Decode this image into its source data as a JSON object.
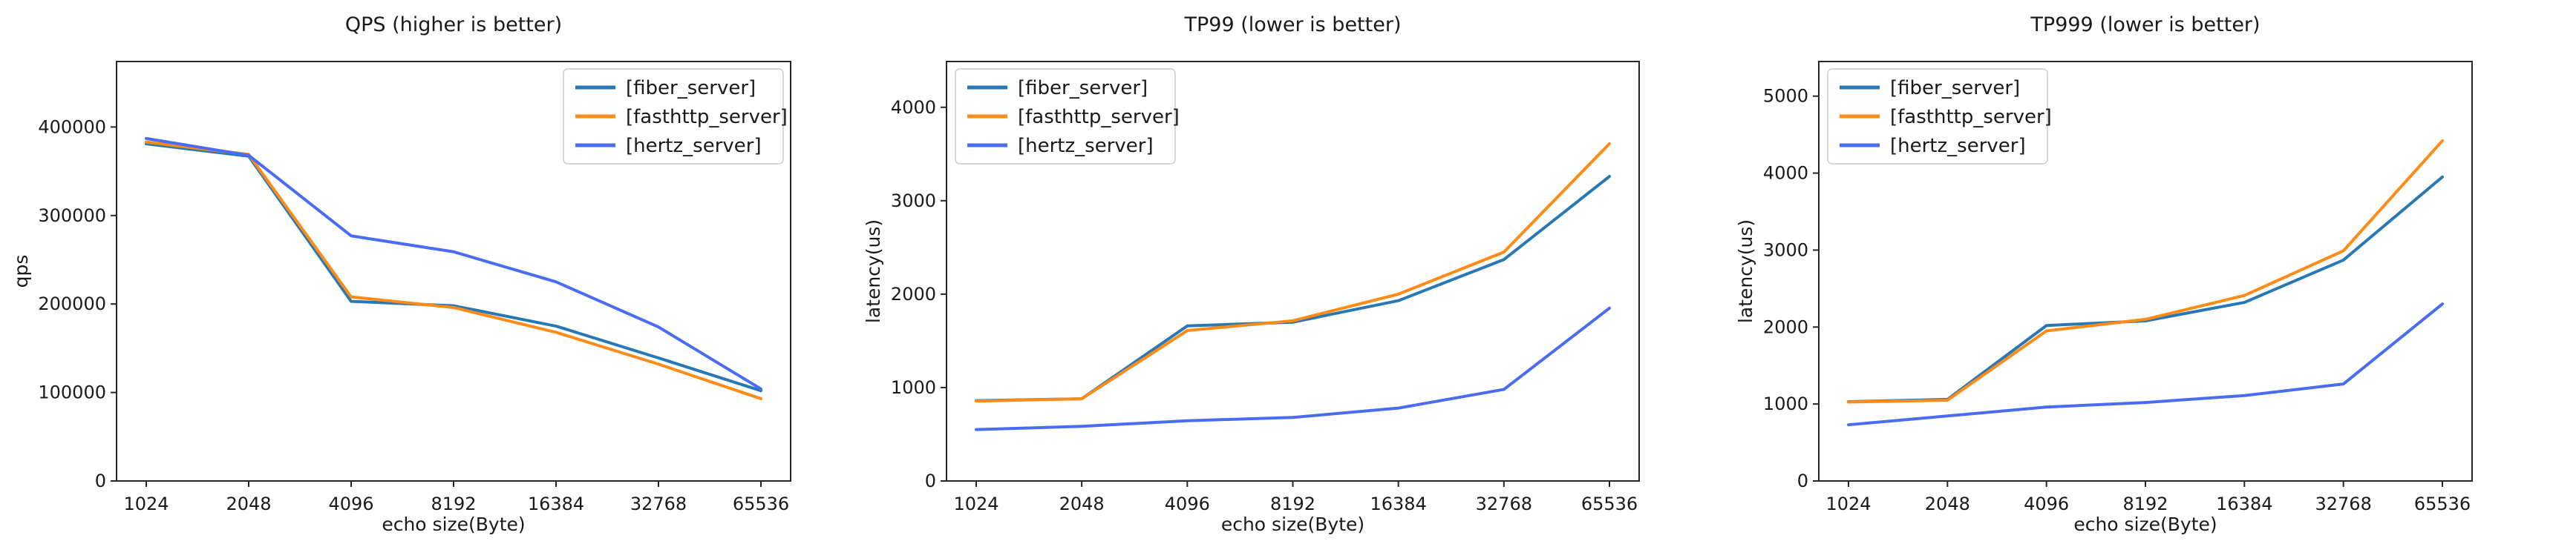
{
  "figure": {
    "background": "#ffffff",
    "text_color": "#1a1a1a",
    "spine_color": "#262626",
    "legend_border_color": "#cccccc",
    "legend_background": "#ffffff"
  },
  "colors": {
    "fiber_server": "#2878b5",
    "fasthttp_server": "#ff8b17",
    "hertz_server": "#4a6cf3"
  },
  "chart_data": [
    {
      "type": "line",
      "title": "QPS (higher is better)",
      "xlabel": "echo size(Byte)",
      "ylabel": "qps",
      "categories": [
        "1024",
        "2048",
        "4096",
        "8192",
        "16384",
        "32768",
        "65536"
      ],
      "yticks": [
        0,
        100000,
        200000,
        300000,
        400000
      ],
      "ylim": [
        0,
        474000
      ],
      "grid": false,
      "legend_position": "top-right",
      "series": [
        {
          "name": "[fiber_server]",
          "color": "#2878b5",
          "values": [
            381000,
            367000,
            203000,
            198000,
            175000,
            139000,
            102000
          ]
        },
        {
          "name": "[fasthttp_server]",
          "color": "#ff8b17",
          "values": [
            383000,
            369000,
            208000,
            196000,
            168000,
            132000,
            93000
          ]
        },
        {
          "name": "[hertz_server]",
          "color": "#4a6cf3",
          "values": [
            387000,
            368000,
            277000,
            259000,
            225000,
            174000,
            104000
          ]
        }
      ]
    },
    {
      "type": "line",
      "title": "TP99 (lower is better)",
      "xlabel": "echo size(Byte)",
      "ylabel": "latency(us)",
      "categories": [
        "1024",
        "2048",
        "4096",
        "8192",
        "16384",
        "32768",
        "65536"
      ],
      "yticks": [
        0,
        1000,
        2000,
        3000,
        4000
      ],
      "ylim": [
        0,
        4490
      ],
      "grid": false,
      "legend_position": "top-left",
      "series": [
        {
          "name": "[fiber_server]",
          "color": "#2878b5",
          "values": [
            860,
            880,
            1660,
            1700,
            1930,
            2370,
            3260
          ]
        },
        {
          "name": "[fasthttp_server]",
          "color": "#ff8b17",
          "values": [
            855,
            880,
            1610,
            1715,
            2000,
            2450,
            3610
          ]
        },
        {
          "name": "[hertz_server]",
          "color": "#4a6cf3",
          "values": [
            550,
            585,
            645,
            680,
            780,
            980,
            1850
          ]
        }
      ]
    },
    {
      "type": "line",
      "title": "TP999 (lower is better)",
      "xlabel": "echo size(Byte)",
      "ylabel": "latency(us)",
      "categories": [
        "1024",
        "2048",
        "4096",
        "8192",
        "16384",
        "32768",
        "65536"
      ],
      "yticks": [
        0,
        1000,
        2000,
        3000,
        4000,
        5000
      ],
      "ylim": [
        0,
        5450
      ],
      "grid": false,
      "legend_position": "top-left",
      "series": [
        {
          "name": "[fiber_server]",
          "color": "#2878b5",
          "values": [
            1030,
            1060,
            2020,
            2080,
            2320,
            2870,
            3950
          ]
        },
        {
          "name": "[fasthttp_server]",
          "color": "#ff8b17",
          "values": [
            1025,
            1050,
            1950,
            2100,
            2410,
            2990,
            4420
          ]
        },
        {
          "name": "[hertz_server]",
          "color": "#4a6cf3",
          "values": [
            730,
            845,
            960,
            1020,
            1110,
            1260,
            2300
          ]
        }
      ]
    }
  ]
}
